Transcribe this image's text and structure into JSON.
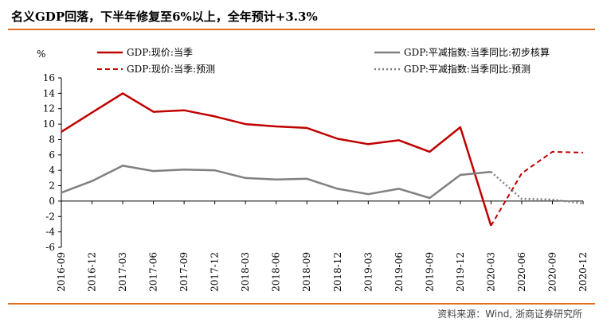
{
  "title": "名义GDP回落，下半年修复至6%以上，全年预计+3.3%",
  "source": "资料来源：Wind, 浙商证券研究所",
  "chart_data": {
    "type": "line",
    "ylabel": "%",
    "ylim": [
      -6,
      16
    ],
    "yticks": [
      -6,
      -4,
      -2,
      0,
      2,
      4,
      6,
      8,
      10,
      12,
      14,
      16
    ],
    "categories": [
      "2016-09",
      "2016-12",
      "2017-03",
      "2017-06",
      "2017-09",
      "2017-12",
      "2018-03",
      "2018-06",
      "2018-09",
      "2018-12",
      "2019-03",
      "2019-06",
      "2019-09",
      "2019-12",
      "2020-03",
      "2020-06",
      "2020-09",
      "2020-12"
    ],
    "series": [
      {
        "name": "GDP:现价:当季",
        "color": "#c00000",
        "style": "solid",
        "values": [
          9.0,
          11.5,
          14.0,
          11.6,
          11.8,
          11.0,
          10.0,
          9.7,
          9.5,
          8.1,
          7.4,
          7.9,
          6.4,
          9.6,
          -3.2,
          null,
          null,
          null
        ]
      },
      {
        "name": "GDP:平减指数:当季同比:初步核算",
        "color": "#808080",
        "style": "solid",
        "values": [
          1.1,
          2.6,
          4.6,
          3.9,
          4.1,
          4.0,
          3.0,
          2.8,
          2.9,
          1.6,
          0.9,
          1.6,
          0.4,
          3.4,
          3.8,
          null,
          null,
          null
        ]
      },
      {
        "name": "GDP:现价:当季:预测",
        "color": "#c00000",
        "style": "dashed",
        "values": [
          null,
          null,
          null,
          null,
          null,
          null,
          null,
          null,
          null,
          null,
          null,
          null,
          null,
          null,
          -3.2,
          3.6,
          6.4,
          6.3
        ]
      },
      {
        "name": "GDP:平减指数:当季同比:预测",
        "color": "#808080",
        "style": "dotted",
        "values": [
          null,
          null,
          null,
          null,
          null,
          null,
          null,
          null,
          null,
          null,
          null,
          null,
          null,
          null,
          3.8,
          0.3,
          0.2,
          -0.3
        ]
      }
    ]
  }
}
